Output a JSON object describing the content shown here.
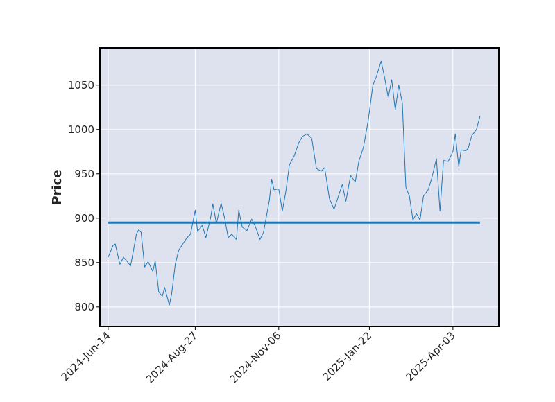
{
  "chart_data": {
    "type": "line",
    "title": "",
    "xlabel": "",
    "ylabel": "Price",
    "grid": true,
    "colors": {
      "background": "#dde2ee",
      "grid": "#ffffff",
      "series": "#1f77b4",
      "frame": "#000000"
    },
    "x_tick_labels": [
      "2024-Jun-14",
      "2024-Aug-27",
      "2024-Nov-06",
      "2025-Jan-22",
      "2025-Apr-03"
    ],
    "y_ticks": [
      800,
      850,
      900,
      950,
      1000,
      1050
    ],
    "ylim": [
      778,
      1092
    ],
    "xlim": [
      "2024-Jun-07",
      "2025-May-12"
    ],
    "series": [
      {
        "kind": "line",
        "values_at": [
          [
            "2024-Jun-14",
            856
          ],
          [
            "2024-Jun-18",
            869
          ],
          [
            "2024-Jun-20",
            871
          ],
          [
            "2024-Jun-24",
            848
          ],
          [
            "2024-Jun-27",
            856
          ],
          [
            "2024-Jul-01",
            850
          ],
          [
            "2024-Jul-03",
            846
          ],
          [
            "2024-Jul-05",
            860
          ],
          [
            "2024-Jul-08",
            882
          ],
          [
            "2024-Jul-10",
            887
          ],
          [
            "2024-Jul-12",
            884
          ],
          [
            "2024-Jul-15",
            845
          ],
          [
            "2024-Jul-18",
            851
          ],
          [
            "2024-Jul-22",
            840
          ],
          [
            "2024-Jul-24",
            852
          ],
          [
            "2024-Jul-27",
            817
          ],
          [
            "2024-Jul-30",
            812
          ],
          [
            "2024-Aug-01",
            822
          ],
          [
            "2024-Aug-05",
            802
          ],
          [
            "2024-Aug-07",
            815
          ],
          [
            "2024-Aug-10",
            848
          ],
          [
            "2024-Aug-13",
            864
          ],
          [
            "2024-Aug-16",
            870
          ],
          [
            "2024-Aug-20",
            878
          ],
          [
            "2024-Aug-23",
            882
          ],
          [
            "2024-Aug-27",
            909
          ],
          [
            "2024-Aug-29",
            885
          ],
          [
            "2024-Sep-02",
            892
          ],
          [
            "2024-Sep-05",
            878
          ],
          [
            "2024-Sep-09",
            900
          ],
          [
            "2024-Sep-11",
            916
          ],
          [
            "2024-Sep-14",
            894
          ],
          [
            "2024-Sep-18",
            917
          ],
          [
            "2024-Sep-21",
            900
          ],
          [
            "2024-Sep-24",
            878
          ],
          [
            "2024-Sep-27",
            882
          ],
          [
            "2024-Oct-01",
            876
          ],
          [
            "2024-Oct-03",
            909
          ],
          [
            "2024-Oct-06",
            890
          ],
          [
            "2024-Oct-10",
            886
          ],
          [
            "2024-Oct-14",
            899
          ],
          [
            "2024-Oct-17",
            891
          ],
          [
            "2024-Oct-21",
            876
          ],
          [
            "2024-Oct-24",
            884
          ],
          [
            "2024-Oct-29",
            920
          ],
          [
            "2024-Oct-31",
            944
          ],
          [
            "2024-Nov-02",
            932
          ],
          [
            "2024-Nov-06",
            933
          ],
          [
            "2024-Nov-09",
            908
          ],
          [
            "2024-Nov-12",
            930
          ],
          [
            "2024-Nov-15",
            960
          ],
          [
            "2024-Nov-19",
            970
          ],
          [
            "2024-Nov-23",
            985
          ],
          [
            "2024-Nov-26",
            992
          ],
          [
            "2024-Nov-30",
            995
          ],
          [
            "2024-Dec-04",
            990
          ],
          [
            "2024-Dec-08",
            956
          ],
          [
            "2024-Dec-12",
            953
          ],
          [
            "2024-Dec-15",
            957
          ],
          [
            "2024-Dec-19",
            922
          ],
          [
            "2024-Dec-23",
            910
          ],
          [
            "2024-Dec-26",
            922
          ],
          [
            "2024-Dec-30",
            938
          ],
          [
            "2025-Jan-02",
            919
          ],
          [
            "2025-Jan-06",
            948
          ],
          [
            "2025-Jan-10",
            941
          ],
          [
            "2025-Jan-13",
            964
          ],
          [
            "2025-Jan-17",
            980
          ],
          [
            "2025-Jan-21",
            1010
          ],
          [
            "2025-Jan-25",
            1050
          ],
          [
            "2025-Jan-28",
            1060
          ],
          [
            "2025-Feb-01",
            1077
          ],
          [
            "2025-Feb-04",
            1058
          ],
          [
            "2025-Feb-07",
            1036
          ],
          [
            "2025-Feb-10",
            1056
          ],
          [
            "2025-Feb-13",
            1022
          ],
          [
            "2025-Feb-16",
            1050
          ],
          [
            "2025-Feb-19",
            1030
          ],
          [
            "2025-Feb-22",
            935
          ],
          [
            "2025-Feb-25",
            925
          ],
          [
            "2025-Feb-28",
            898
          ],
          [
            "2025-Mar-03",
            905
          ],
          [
            "2025-Mar-06",
            898
          ],
          [
            "2025-Mar-09",
            925
          ],
          [
            "2025-Mar-13",
            932
          ],
          [
            "2025-Mar-16",
            945
          ],
          [
            "2025-Mar-20",
            967
          ],
          [
            "2025-Mar-23",
            908
          ],
          [
            "2025-Mar-26",
            965
          ],
          [
            "2025-Mar-30",
            964
          ],
          [
            "2025-Apr-03",
            975
          ],
          [
            "2025-Apr-05",
            995
          ],
          [
            "2025-Apr-08",
            958
          ],
          [
            "2025-Apr-10",
            977
          ],
          [
            "2025-Apr-14",
            976
          ],
          [
            "2025-Apr-16",
            979
          ],
          [
            "2025-Apr-19",
            993
          ],
          [
            "2025-Apr-23",
            1000
          ],
          [
            "2025-Apr-26",
            1015
          ]
        ]
      },
      {
        "kind": "hline",
        "value": 895,
        "x_range": [
          "2024-Jun-14",
          "2025-Apr-26"
        ]
      }
    ]
  }
}
